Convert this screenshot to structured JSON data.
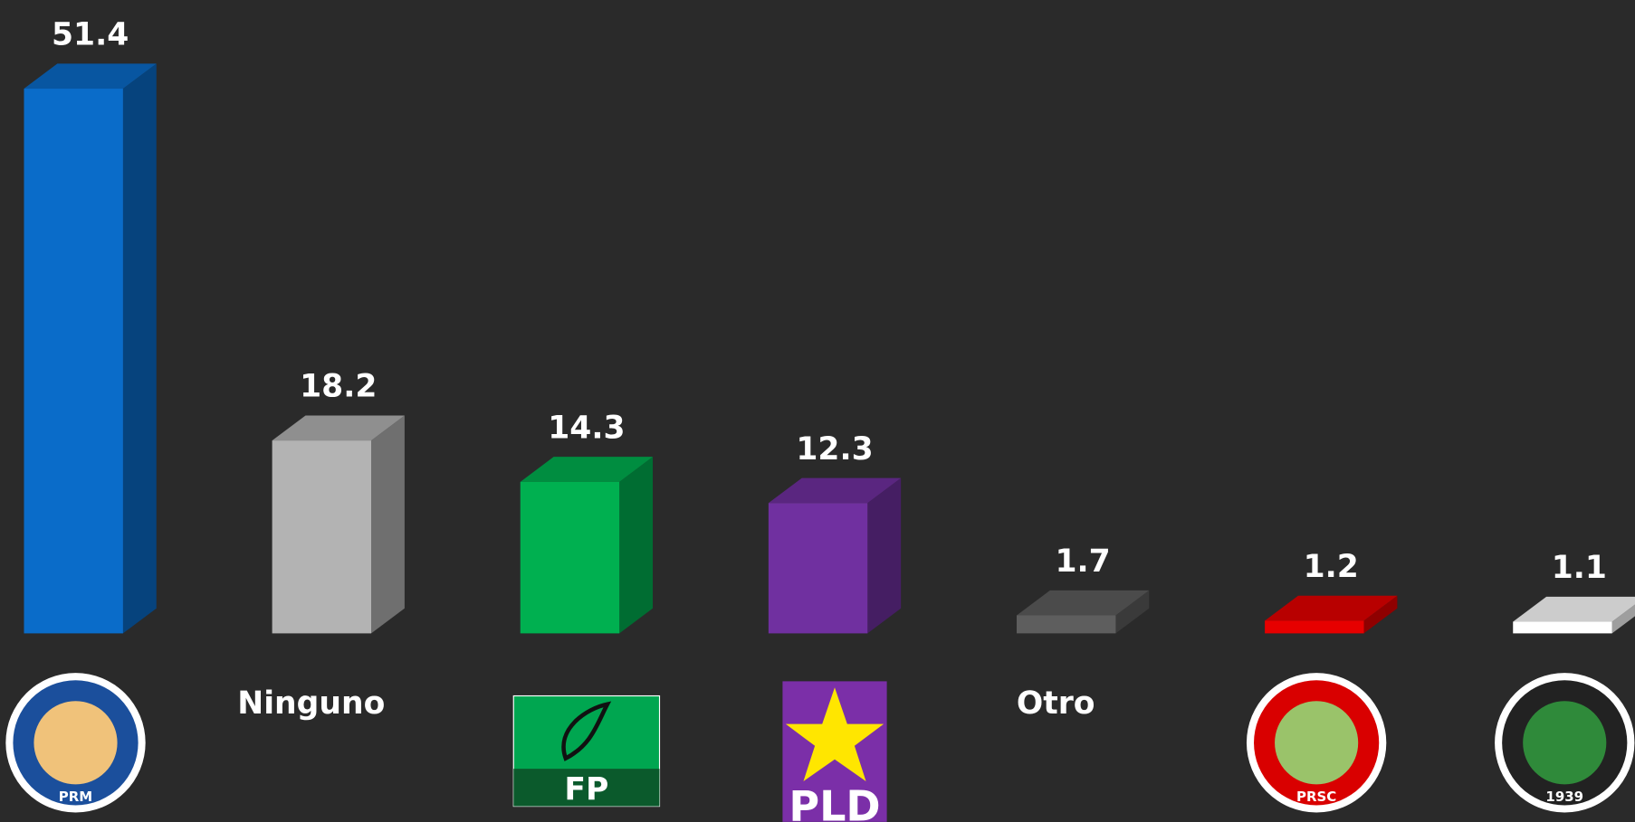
{
  "chart_data": {
    "type": "bar3d",
    "categories": [
      "PRM",
      "Ninguno",
      "FP",
      "PLD",
      "Otro",
      "PRSC",
      "1939"
    ],
    "label_kind": [
      "logo",
      "text",
      "logo",
      "logo",
      "text",
      "logo",
      "logo"
    ],
    "values": [
      51.4,
      18.2,
      14.3,
      12.3,
      1.7,
      1.2,
      1.1
    ],
    "colors": [
      "#0a6cc9",
      "#b3b3b3",
      "#00b050",
      "#7030a0",
      "#5e5e5e",
      "#e60000",
      "#ffffff"
    ]
  }
}
